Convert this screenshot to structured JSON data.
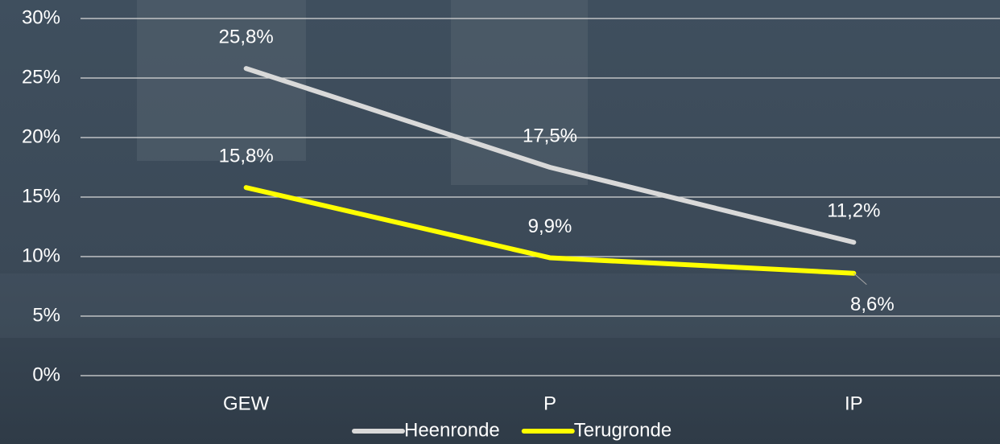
{
  "chart_data": {
    "type": "line",
    "categories": [
      "GEW",
      "P",
      "IP"
    ],
    "series": [
      {
        "name": "Heenronde",
        "color": "#d9d9d9",
        "values": [
          25.8,
          17.5,
          11.2
        ],
        "value_labels": [
          "25,8%",
          "17,5%",
          "11,2%"
        ]
      },
      {
        "name": "Terugronde",
        "color": "#ffff00",
        "values": [
          15.8,
          9.9,
          8.6
        ],
        "value_labels": [
          "15,8%",
          "9,9%",
          "8,6%"
        ]
      }
    ],
    "ylim": [
      0,
      30
    ],
    "yticks": [
      {
        "value": 0,
        "label": "0%"
      },
      {
        "value": 5,
        "label": "5%"
      },
      {
        "value": 10,
        "label": "10%"
      },
      {
        "value": 15,
        "label": "15%"
      },
      {
        "value": 20,
        "label": "20%"
      },
      {
        "value": 25,
        "label": "25%"
      },
      {
        "value": 30,
        "label": "30%"
      }
    ],
    "grid": true,
    "legend": "bottom"
  }
}
